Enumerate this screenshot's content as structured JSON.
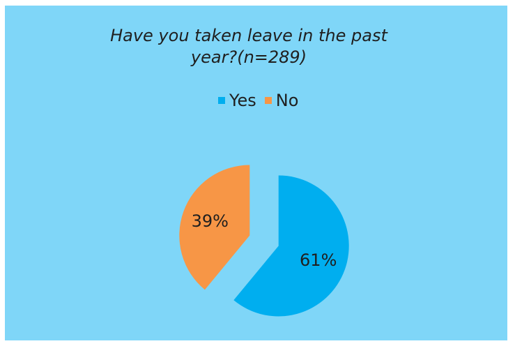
{
  "chart_data": {
    "type": "pie",
    "title": [
      "Have you taken leave in the past",
      "year?(n=289)"
    ],
    "legend_position": "top",
    "categories": [
      "Yes",
      "No"
    ],
    "values": [
      61,
      39
    ],
    "data_labels": [
      "61%",
      "39%"
    ],
    "colors": [
      "#00aeef",
      "#f79646"
    ],
    "exploded": true
  },
  "colors": {
    "plot_background": "#7fd6f8"
  }
}
